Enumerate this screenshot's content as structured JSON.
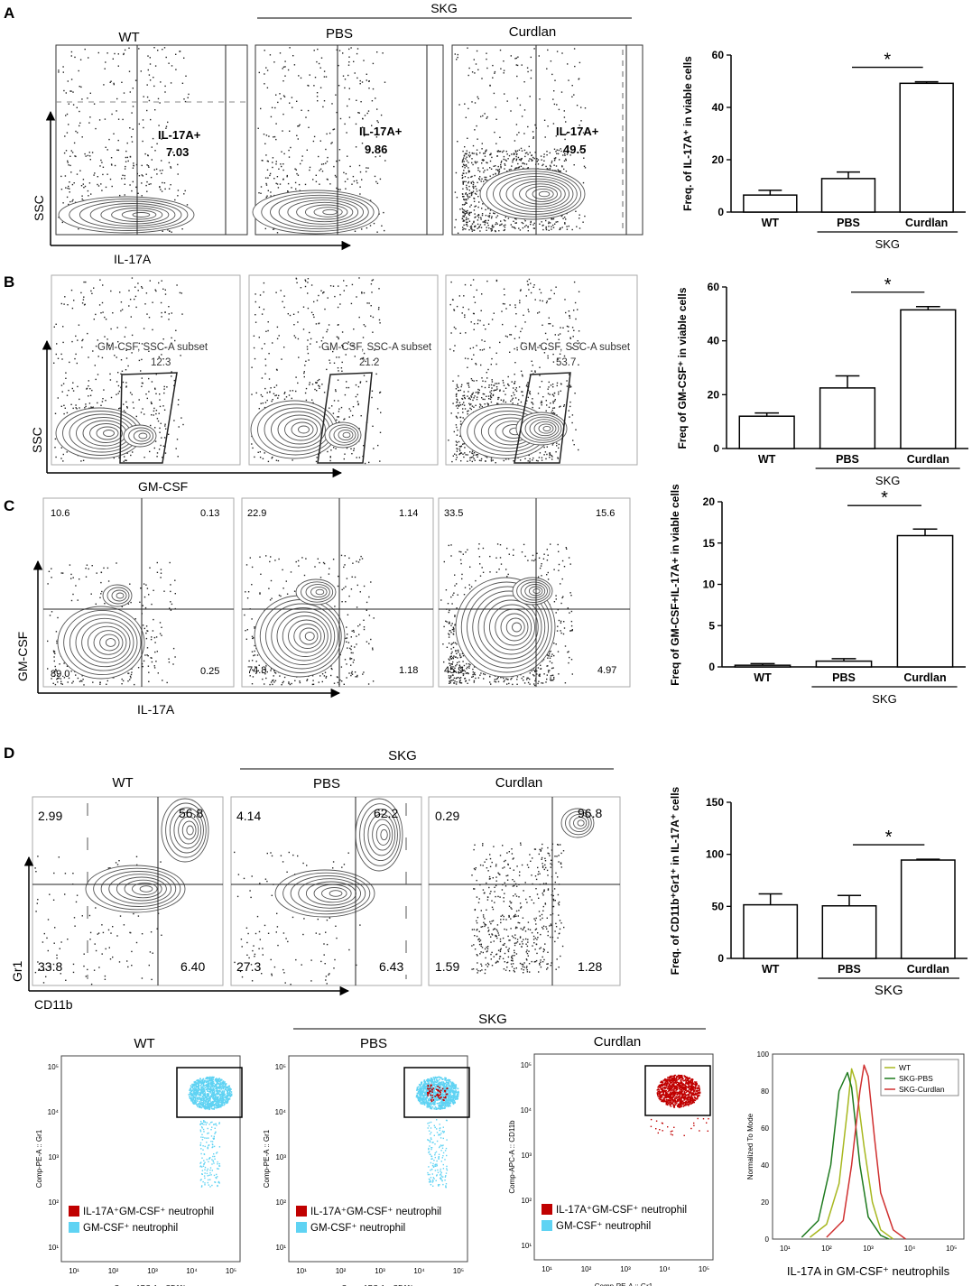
{
  "panels": [
    {
      "letter": "A",
      "group_label": "SKG",
      "columns": [
        "WT",
        "PBS",
        "Curdlan"
      ],
      "axis_labels": {
        "y": "SSC",
        "x": "IL-17A"
      },
      "gate_labels": [
        {
          "name": "IL-17A+",
          "value": "7.03"
        },
        {
          "name": "IL-17A+",
          "value": "9.86"
        },
        {
          "name": "IL-17A+",
          "value": "49.5"
        }
      ]
    },
    {
      "letter": "B",
      "axis_labels": {
        "y": "SSC",
        "x": "GM-CSF"
      },
      "gate_labels": [
        {
          "name": "GM-CSF, SSC-A subset",
          "value": "12.3"
        },
        {
          "name": "GM-CSF, SSC-A subset",
          "value": "21.2"
        },
        {
          "name": "GM-CSF, SSC-A subset",
          "value": "53.7"
        }
      ]
    },
    {
      "letter": "C",
      "axis_labels": {
        "y": "GM-CSF",
        "x": "IL-17A"
      },
      "quadrants": [
        {
          "ul": "10.6",
          "ur": "0.13",
          "ll": "89.0",
          "lr": "0.25"
        },
        {
          "ul": "22.9",
          "ur": "1.14",
          "ll": "74.8",
          "lr": "1.18"
        },
        {
          "ul": "33.5",
          "ur": "15.6",
          "ll": "45.9",
          "lr": "4.97"
        }
      ]
    },
    {
      "letter": "D",
      "group_label": "SKG",
      "columns": [
        "WT",
        "PBS",
        "Curdlan"
      ],
      "axis_labels": {
        "y": "Gr1",
        "x": "CD11b"
      },
      "quadrants": [
        {
          "ul": "2.99",
          "ur": "56.8",
          "ll": "33.8",
          "lr": "6.40"
        },
        {
          "ul": "4.14",
          "ur": "62.2",
          "ll": "27.3",
          "lr": "6.43"
        },
        {
          "ul": "0.29",
          "ur": "96.8",
          "ll": "1.59",
          "lr": "1.28"
        }
      ]
    }
  ],
  "bottom_row": {
    "group_label": "SKG",
    "columns": [
      "WT",
      "PBS",
      "Curdlan"
    ],
    "plots": [
      {
        "ylabel": "Comp-PE-A :: Gr1",
        "xlabel": "Comp-APC-A :: CD11b"
      },
      {
        "ylabel": "Comp-PE-A :: Gr1",
        "xlabel": "Comp-APC-A :: CD11b"
      },
      {
        "ylabel": "Comp-APC-A :: CD11b",
        "xlabel": "Comp-PE-A :: Gr1"
      }
    ],
    "legend": [
      "IL-17A⁺GM-CSF⁺ neutrophil",
      "GM-CSF⁺ neutrophil"
    ],
    "log_ticks": [
      "10¹",
      "10²",
      "10³",
      "10⁴",
      "10⁵"
    ],
    "colors": {
      "double_positive": "#c00000",
      "gmcsf_positive": "#5fd3f3"
    }
  },
  "chart_data": [
    {
      "type": "bar",
      "categories": [
        "WT",
        "PBS",
        "Curdlan"
      ],
      "values": [
        6.5,
        12.8,
        49.2
      ],
      "errors": [
        1.8,
        2.5,
        0.6
      ],
      "ylim": [
        0,
        60
      ],
      "yticks": [
        "0",
        "20",
        "40",
        "60"
      ],
      "ylabel": "Freq. of IL-17A⁺ in viable cells",
      "group_label": "SKG",
      "significance": "*"
    },
    {
      "type": "bar",
      "categories": [
        "WT",
        "PBS",
        "Curdlan"
      ],
      "values": [
        12,
        22.5,
        51.5
      ],
      "errors": [
        1.2,
        4.5,
        1.2
      ],
      "ylim": [
        0,
        60
      ],
      "yticks": [
        "0",
        "20",
        "40",
        "60"
      ],
      "ylabel": "Freq of GM-CSF⁺ in viable cells",
      "group_label": "SKG",
      "significance": "*"
    },
    {
      "type": "bar",
      "categories": [
        "WT",
        "PBS",
        "Curdlan"
      ],
      "values": [
        0.2,
        0.7,
        15.9
      ],
      "errors": [
        0.2,
        0.3,
        0.8
      ],
      "ylim": [
        0,
        20
      ],
      "yticks": [
        "0",
        "5",
        "10",
        "15",
        "20"
      ],
      "ylabel": "Freq of GM-CSF+IL-17A+ in viable cells",
      "group_label": "SKG",
      "significance": "*"
    },
    {
      "type": "bar",
      "categories": [
        "WT",
        "PBS",
        "Curdlan"
      ],
      "values": [
        51.5,
        50.5,
        94.5
      ],
      "errors": [
        10.5,
        10,
        0.8
      ],
      "ylim": [
        0,
        150
      ],
      "yticks": [
        "0",
        "50",
        "100",
        "150"
      ],
      "ylabel": "Freq. of CD11b⁺Gr1⁺ in IL-17A⁺ cells",
      "group_label": "SKG",
      "significance": "*"
    },
    {
      "type": "line",
      "xlabel": "IL-17A in GM-CSF⁺ neutrophils",
      "ylabel": "Normalized To Mode",
      "ylim": [
        0,
        100
      ],
      "yticks": [
        "0",
        "20",
        "40",
        "60",
        "80",
        "100"
      ],
      "xticks": [
        "10¹",
        "10²",
        "10³",
        "10⁴",
        "10⁵"
      ],
      "series": [
        {
          "name": "WT",
          "color": "#a8b820",
          "x": [
            1.6,
            2.0,
            2.3,
            2.5,
            2.6,
            2.7,
            2.9,
            3.1,
            3.3,
            3.6
          ],
          "y": [
            1,
            8,
            30,
            70,
            92,
            85,
            50,
            20,
            5,
            0
          ]
        },
        {
          "name": "SKG-PBS",
          "color": "#1e7a1e",
          "x": [
            1.4,
            1.8,
            2.1,
            2.3,
            2.5,
            2.6,
            2.8,
            3.0,
            3.3,
            3.5
          ],
          "y": [
            1,
            10,
            40,
            80,
            90,
            82,
            40,
            12,
            2,
            0
          ]
        },
        {
          "name": "SKG-Curdlan",
          "color": "#d03030",
          "x": [
            2.0,
            2.4,
            2.6,
            2.8,
            2.9,
            3.0,
            3.15,
            3.3,
            3.6,
            3.9
          ],
          "y": [
            1,
            10,
            40,
            80,
            94,
            88,
            55,
            25,
            5,
            0
          ]
        }
      ]
    }
  ]
}
